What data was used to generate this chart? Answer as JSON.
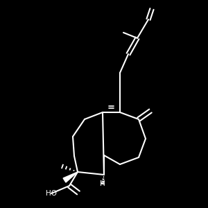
{
  "bg_color": "#000000",
  "line_color": "#ffffff",
  "line_width": 1.5,
  "figsize": [
    3.0,
    3.0
  ],
  "dpi": 100
}
